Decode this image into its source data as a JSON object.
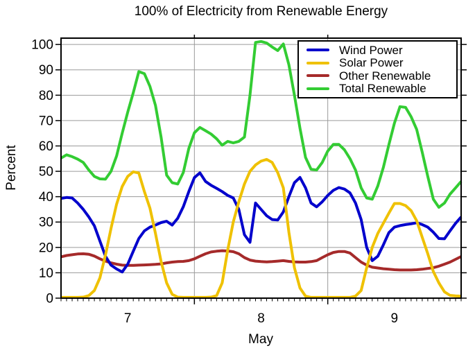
{
  "chart_data": {
    "type": "line",
    "title": "100% of Electricity from Renewable Energy",
    "xlabel": "May",
    "ylabel": "Percent",
    "x_unit": "hours from May 7 00:00",
    "xlim_hours": [
      0,
      72
    ],
    "ylim": [
      0,
      102.5
    ],
    "grid": true,
    "legend_position": "top-right",
    "y_ticks": [
      0,
      10,
      20,
      30,
      40,
      50,
      60,
      70,
      80,
      90,
      100
    ],
    "x_day_labels": [
      {
        "label": "7",
        "hour": 12
      },
      {
        "label": "8",
        "hour": 36
      },
      {
        "label": "9",
        "hour": 60
      }
    ],
    "x_gridline_hours": [
      24,
      48
    ],
    "x_minor_tick_every_hours": 1,
    "x_hours": [
      0,
      1,
      2,
      3,
      4,
      5,
      6,
      7,
      8,
      9,
      10,
      11,
      12,
      13,
      14,
      15,
      16,
      17,
      18,
      19,
      20,
      21,
      22,
      23,
      24,
      25,
      26,
      27,
      28,
      29,
      30,
      31,
      32,
      33,
      34,
      35,
      36,
      37,
      38,
      39,
      40,
      41,
      42,
      43,
      44,
      45,
      46,
      47,
      48,
      49,
      50,
      51,
      52,
      53,
      54,
      55,
      56,
      57,
      58,
      59,
      60,
      61,
      62,
      63,
      64,
      65,
      66,
      67,
      68,
      69,
      70,
      71,
      72
    ],
    "series": [
      {
        "name": "Wind Power",
        "color": "#0000CC",
        "values": [
          39.3,
          39.7,
          39.5,
          37.5,
          35.0,
          32.0,
          28.5,
          22.5,
          16.5,
          13.0,
          11.5,
          10.3,
          13.4,
          18.5,
          23.5,
          26.5,
          28.0,
          28.8,
          29.8,
          30.3,
          28.8,
          31.5,
          36.0,
          42.0,
          47.5,
          49.4,
          46.0,
          44.5,
          43.3,
          42.0,
          40.5,
          39.5,
          35.0,
          25.0,
          22.0,
          37.5,
          35.0,
          32.5,
          31.0,
          30.8,
          34.0,
          40.0,
          45.5,
          47.6,
          43.5,
          37.5,
          36.0,
          38.0,
          40.5,
          42.5,
          43.6,
          43.0,
          41.5,
          37.5,
          31.0,
          20.0,
          14.8,
          16.5,
          21.0,
          25.8,
          28.0,
          28.6,
          29.0,
          29.3,
          29.7,
          29.0,
          28.0,
          26.0,
          23.5,
          23.4,
          26.5,
          29.5,
          32.0
        ]
      },
      {
        "name": "Solar Power",
        "color": "#EFC100",
        "values": [
          0.3,
          0.3,
          0.3,
          0.3,
          0.4,
          1.0,
          3.0,
          8.0,
          17.0,
          27.5,
          37.0,
          44.0,
          48.0,
          49.8,
          49.3,
          42.0,
          35.5,
          25.5,
          14.5,
          6.0,
          1.5,
          0.4,
          0.3,
          0.3,
          0.3,
          0.3,
          0.3,
          0.4,
          1.0,
          6.0,
          19.0,
          30.0,
          38.0,
          45.0,
          50.0,
          52.5,
          54.0,
          54.7,
          53.5,
          49.5,
          43.5,
          26.0,
          12.0,
          4.0,
          0.8,
          0.3,
          0.3,
          0.3,
          0.3,
          0.3,
          0.3,
          0.3,
          0.3,
          0.8,
          3.0,
          12.0,
          20.0,
          25.5,
          29.5,
          33.5,
          37.3,
          37.3,
          36.5,
          34.5,
          30.5,
          24.0,
          17.5,
          10.5,
          6.0,
          2.5,
          1.1,
          0.9,
          0.8
        ]
      },
      {
        "name": "Other Renewable",
        "color": "#A52A2A",
        "values": [
          16.3,
          16.8,
          17.1,
          17.4,
          17.5,
          17.3,
          16.6,
          15.5,
          14.6,
          13.9,
          13.4,
          13.0,
          12.9,
          12.9,
          13.0,
          13.1,
          13.2,
          13.3,
          13.5,
          13.9,
          14.2,
          14.4,
          14.5,
          14.8,
          15.5,
          16.5,
          17.5,
          18.2,
          18.5,
          18.7,
          18.6,
          18.3,
          17.5,
          16.0,
          15.0,
          14.6,
          14.4,
          14.3,
          14.4,
          14.6,
          14.8,
          14.5,
          14.3,
          14.2,
          14.2,
          14.4,
          14.8,
          16.0,
          17.1,
          18.0,
          18.4,
          18.4,
          17.8,
          16.0,
          14.2,
          13.0,
          12.2,
          11.9,
          11.6,
          11.4,
          11.2,
          11.1,
          11.1,
          11.1,
          11.2,
          11.4,
          11.7,
          12.0,
          12.6,
          13.4,
          14.2,
          15.3,
          16.4
        ]
      },
      {
        "name": "Total Renewable",
        "color": "#33CC33",
        "values": [
          55.2,
          56.5,
          55.8,
          54.8,
          53.5,
          50.5,
          48.0,
          47.0,
          46.9,
          50.0,
          56.0,
          65.0,
          73.3,
          81.0,
          89.3,
          88.5,
          83.5,
          76.0,
          63.5,
          48.5,
          45.5,
          45.0,
          49.5,
          59.0,
          65.2,
          67.3,
          66.0,
          64.7,
          62.8,
          60.3,
          61.8,
          61.2,
          61.8,
          63.5,
          80.0,
          100.8,
          101.2,
          100.6,
          99.0,
          97.6,
          100.2,
          92.0,
          80.0,
          67.0,
          55.5,
          50.8,
          50.5,
          53.5,
          58.0,
          60.6,
          60.6,
          58.5,
          55.0,
          50.5,
          43.5,
          39.5,
          39.0,
          44.2,
          51.5,
          60.5,
          69.0,
          75.5,
          75.2,
          71.5,
          66.5,
          57.5,
          48.0,
          39.0,
          35.8,
          37.5,
          41.0,
          43.5,
          46.0
        ]
      }
    ],
    "draw_order_indices": [
      2,
      0,
      1,
      3
    ],
    "colors": {
      "frame": "#000000",
      "grid": "#9a9a9a",
      "text": "#000000",
      "background": "#ffffff"
    }
  }
}
